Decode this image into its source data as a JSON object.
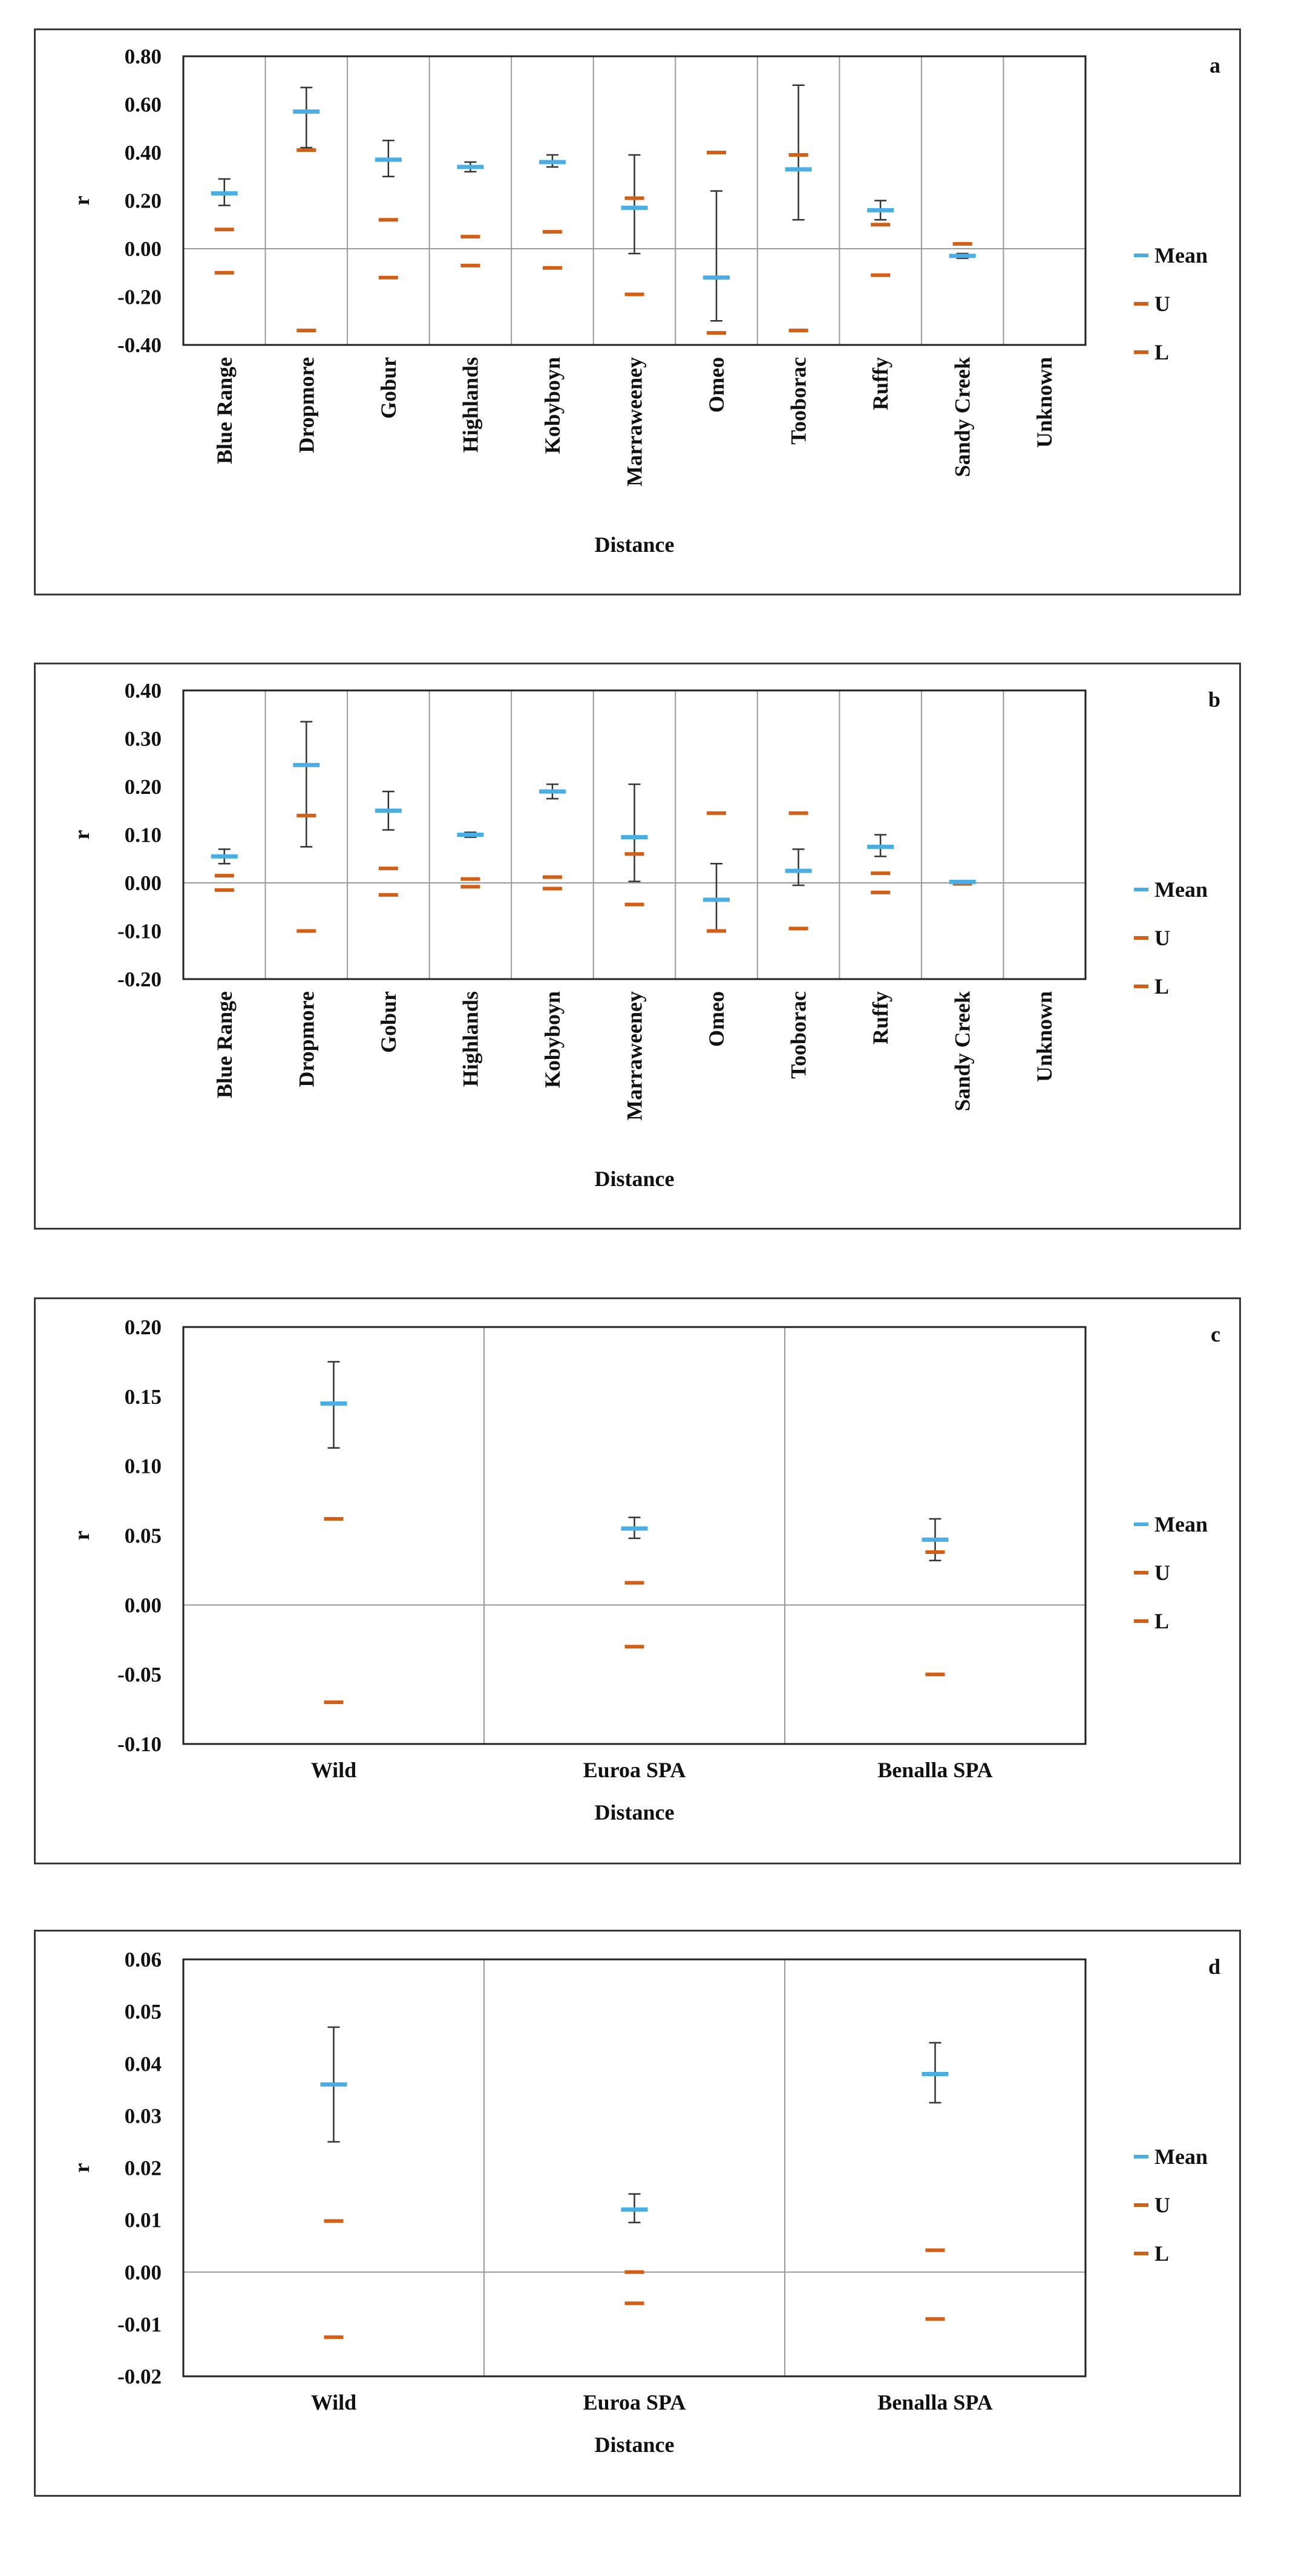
{
  "colors": {
    "mean": "#4aaee4",
    "bound": "#d35f16",
    "axis": "#222222",
    "grid": "#9a9a9a",
    "whisker": "#333333"
  },
  "chart_data": [
    {
      "id": "a",
      "type": "scatter",
      "panel_label": "a",
      "title": "",
      "xlabel": "Distance",
      "ylabel": "r",
      "ylim": [
        -0.4,
        0.8
      ],
      "yticks": [
        "0.80",
        "0.60",
        "0.40",
        "0.20",
        "0.00",
        "-0.20",
        "-0.40"
      ],
      "ytick_values": [
        0.8,
        0.6,
        0.4,
        0.2,
        0.0,
        -0.2,
        -0.4
      ],
      "categories": [
        "Blue Range",
        "Dropmore",
        "Gobur",
        "Highlands",
        "Kobyboyn",
        "Marraweeney",
        "Omeo",
        "Tooborac",
        "Ruffy",
        "Sandy Creek",
        "Unknown"
      ],
      "x_label_rotated": true,
      "legend": [
        "Mean",
        "U",
        "L"
      ],
      "series": [
        {
          "name": "Mean",
          "values": [
            0.23,
            0.57,
            0.37,
            0.34,
            0.36,
            0.17,
            -0.12,
            0.33,
            0.16,
            -0.03,
            null
          ]
        },
        {
          "name": "U",
          "values": [
            0.08,
            0.41,
            0.12,
            0.05,
            0.07,
            0.21,
            0.4,
            0.39,
            0.1,
            0.02,
            null
          ]
        },
        {
          "name": "L",
          "values": [
            -0.1,
            -0.34,
            -0.12,
            -0.07,
            -0.08,
            -0.19,
            -0.35,
            -0.34,
            -0.11,
            -0.03,
            null
          ]
        }
      ],
      "error_low": [
        0.18,
        0.42,
        0.3,
        0.32,
        0.34,
        -0.02,
        -0.3,
        0.12,
        0.12,
        -0.04,
        null
      ],
      "error_high": [
        0.29,
        0.67,
        0.45,
        0.36,
        0.39,
        0.39,
        0.24,
        0.68,
        0.2,
        -0.02,
        null
      ]
    },
    {
      "id": "b",
      "type": "scatter",
      "panel_label": "b",
      "title": "",
      "xlabel": "Distance",
      "ylabel": "r",
      "ylim": [
        -0.2,
        0.4
      ],
      "yticks": [
        "0.40",
        "0.30",
        "0.20",
        "0.10",
        "0.00",
        "-0.10",
        "-0.20"
      ],
      "ytick_values": [
        0.4,
        0.3,
        0.2,
        0.1,
        0.0,
        -0.1,
        -0.2
      ],
      "categories": [
        "Blue Range",
        "Dropmore",
        "Gobur",
        "Highlands",
        "Kobyboyn",
        "Marraweeney",
        "Omeo",
        "Tooborac",
        "Ruffy",
        "Sandy Creek",
        "Unknown"
      ],
      "x_label_rotated": true,
      "legend": [
        "Mean",
        "U",
        "L"
      ],
      "series": [
        {
          "name": "Mean",
          "values": [
            0.055,
            0.245,
            0.15,
            0.1,
            0.19,
            0.095,
            -0.035,
            0.025,
            0.075,
            0.002,
            null
          ]
        },
        {
          "name": "U",
          "values": [
            0.015,
            0.14,
            0.03,
            0.008,
            0.012,
            0.06,
            0.145,
            0.145,
            0.02,
            0.002,
            null
          ]
        },
        {
          "name": "L",
          "values": [
            -0.015,
            -0.1,
            -0.025,
            -0.008,
            -0.012,
            -0.045,
            -0.1,
            -0.095,
            -0.02,
            -0.002,
            null
          ]
        }
      ],
      "error_low": [
        0.04,
        0.075,
        0.11,
        0.095,
        0.175,
        0.003,
        -0.1,
        -0.005,
        0.055,
        0.0,
        null
      ],
      "error_high": [
        0.07,
        0.335,
        0.19,
        0.105,
        0.205,
        0.205,
        0.04,
        0.07,
        0.1,
        0.004,
        null
      ]
    },
    {
      "id": "c",
      "type": "scatter",
      "panel_label": "c",
      "title": "",
      "xlabel": "Distance",
      "ylabel": "r",
      "ylim": [
        -0.1,
        0.2
      ],
      "yticks": [
        "0.20",
        "0.15",
        "0.10",
        "0.05",
        "0.00",
        "-0.05",
        "-0.10"
      ],
      "ytick_values": [
        0.2,
        0.15,
        0.1,
        0.05,
        0.0,
        -0.05,
        -0.1
      ],
      "categories": [
        "Wild",
        "Euroa SPA",
        "Benalla SPA"
      ],
      "x_label_rotated": false,
      "legend": [
        "Mean",
        "U",
        "L"
      ],
      "series": [
        {
          "name": "Mean",
          "values": [
            0.145,
            0.055,
            0.047
          ]
        },
        {
          "name": "U",
          "values": [
            0.062,
            0.016,
            0.038
          ]
        },
        {
          "name": "L",
          "values": [
            -0.07,
            -0.03,
            -0.05
          ]
        }
      ],
      "error_low": [
        0.113,
        0.048,
        0.032
      ],
      "error_high": [
        0.175,
        0.063,
        0.062
      ]
    },
    {
      "id": "d",
      "type": "scatter",
      "panel_label": "d",
      "title": "",
      "xlabel": "Distance",
      "ylabel": "r",
      "ylim": [
        -0.02,
        0.06
      ],
      "yticks": [
        "0.06",
        "0.05",
        "0.04",
        "0.03",
        "0.02",
        "0.01",
        "0.00",
        "-0.01",
        "-0.02"
      ],
      "ytick_values": [
        0.06,
        0.05,
        0.04,
        0.03,
        0.02,
        0.01,
        0.0,
        -0.01,
        -0.02
      ],
      "categories": [
        "Wild",
        "Euroa SPA",
        "Benalla SPA"
      ],
      "x_label_rotated": false,
      "legend": [
        "Mean",
        "U",
        "L"
      ],
      "series": [
        {
          "name": "Mean",
          "values": [
            0.036,
            0.012,
            0.038
          ]
        },
        {
          "name": "U",
          "values": [
            0.0098,
            0.0,
            0.0042
          ]
        },
        {
          "name": "L",
          "values": [
            -0.0125,
            -0.006,
            -0.009
          ]
        }
      ],
      "error_low": [
        0.025,
        0.0095,
        0.0325
      ],
      "error_high": [
        0.047,
        0.015,
        0.044
      ]
    }
  ]
}
